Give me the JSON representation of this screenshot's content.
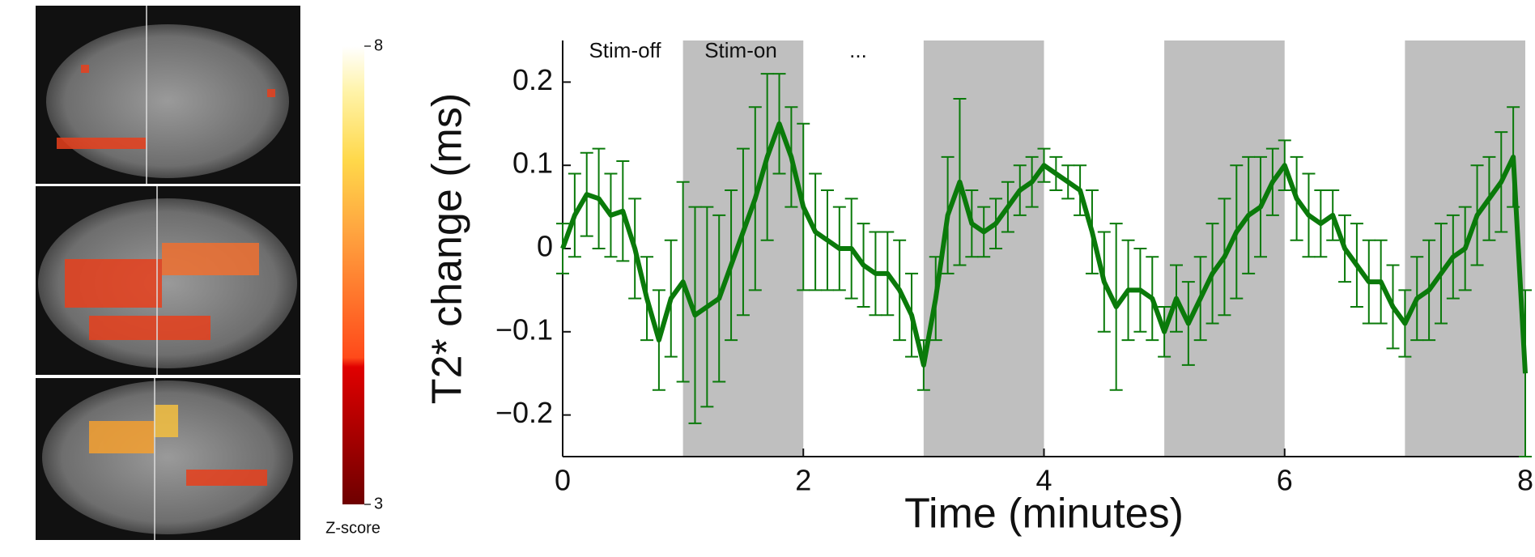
{
  "chart_data": {
    "type": "line",
    "ylabel": "T2* change (ms)",
    "xlabel": "Time (minutes)",
    "annotations": [
      "Stim-off",
      "Stim-on",
      "..."
    ],
    "shaded_regions": [
      [
        1,
        2
      ],
      [
        3,
        4
      ],
      [
        5,
        6
      ],
      [
        7,
        8
      ]
    ],
    "shade_color": "#bfbfbf",
    "x": [
      0,
      0.1,
      0.2,
      0.3,
      0.4,
      0.5,
      0.6,
      0.7,
      0.8,
      0.9,
      1.0,
      1.1,
      1.2,
      1.3,
      1.4,
      1.5,
      1.6,
      1.7,
      1.8,
      1.9,
      2.0,
      2.1,
      2.2,
      2.3,
      2.4,
      2.5,
      2.6,
      2.7,
      2.8,
      2.9,
      3.0,
      3.1,
      3.2,
      3.3,
      3.4,
      3.5,
      3.6,
      3.7,
      3.8,
      3.9,
      4.0,
      4.1,
      4.2,
      4.3,
      4.4,
      4.5,
      4.6,
      4.7,
      4.8,
      4.9,
      5.0,
      5.1,
      5.2,
      5.3,
      5.4,
      5.5,
      5.6,
      5.7,
      5.8,
      5.9,
      6.0,
      6.1,
      6.2,
      6.3,
      6.4,
      6.5,
      6.6,
      6.7,
      6.8,
      6.9,
      7.0,
      7.1,
      7.2,
      7.3,
      7.4,
      7.5,
      7.6,
      7.7,
      7.8,
      7.9,
      8.0
    ],
    "series": [
      {
        "color": "#0a7a0a",
        "values": [
          0.0,
          0.04,
          0.065,
          0.06,
          0.04,
          0.045,
          0.0,
          -0.06,
          -0.11,
          -0.06,
          -0.04,
          -0.08,
          -0.07,
          -0.06,
          -0.02,
          0.02,
          0.06,
          0.11,
          0.15,
          0.11,
          0.05,
          0.02,
          0.01,
          0.0,
          0.0,
          -0.02,
          -0.03,
          -0.03,
          -0.05,
          -0.08,
          -0.14,
          -0.06,
          0.04,
          0.08,
          0.03,
          0.02,
          0.03,
          0.05,
          0.07,
          0.08,
          0.1,
          0.09,
          0.08,
          0.07,
          0.02,
          -0.04,
          -0.07,
          -0.05,
          -0.05,
          -0.06,
          -0.1,
          -0.06,
          -0.09,
          -0.06,
          -0.03,
          -0.01,
          0.02,
          0.04,
          0.05,
          0.08,
          0.1,
          0.06,
          0.04,
          0.03,
          0.04,
          0.0,
          -0.02,
          -0.04,
          -0.04,
          -0.07,
          -0.09,
          -0.06,
          -0.05,
          -0.03,
          -0.01,
          0.0,
          0.04,
          0.06,
          0.08,
          0.11,
          -0.15
        ],
        "errors": [
          0.03,
          0.05,
          0.05,
          0.06,
          0.05,
          0.06,
          0.06,
          0.05,
          0.06,
          0.07,
          0.12,
          0.13,
          0.12,
          0.1,
          0.09,
          0.1,
          0.11,
          0.1,
          0.06,
          0.06,
          0.1,
          0.07,
          0.06,
          0.05,
          0.06,
          0.05,
          0.05,
          0.05,
          0.06,
          0.05,
          0.03,
          0.05,
          0.07,
          0.1,
          0.04,
          0.03,
          0.03,
          0.03,
          0.03,
          0.03,
          0.02,
          0.02,
          0.02,
          0.03,
          0.05,
          0.06,
          0.1,
          0.06,
          0.05,
          0.05,
          0.03,
          0.04,
          0.05,
          0.05,
          0.06,
          0.07,
          0.08,
          0.07,
          0.06,
          0.04,
          0.03,
          0.05,
          0.05,
          0.04,
          0.03,
          0.04,
          0.05,
          0.05,
          0.05,
          0.05,
          0.04,
          0.05,
          0.06,
          0.06,
          0.05,
          0.05,
          0.06,
          0.05,
          0.06,
          0.06,
          0.1
        ]
      }
    ],
    "xlim": [
      0,
      8
    ],
    "xticks": [
      0,
      2,
      4,
      6,
      8
    ],
    "ylim": [
      -0.25,
      0.25
    ],
    "yticks": [
      {
        "value": -0.2,
        "label": "−0.2"
      },
      {
        "value": -0.1,
        "label": "−0.1"
      },
      0,
      0.1,
      0.2
    ]
  },
  "colorbar": {
    "label": "Z-score",
    "lim": [
      3,
      8
    ],
    "ticks": [
      3,
      8
    ]
  }
}
